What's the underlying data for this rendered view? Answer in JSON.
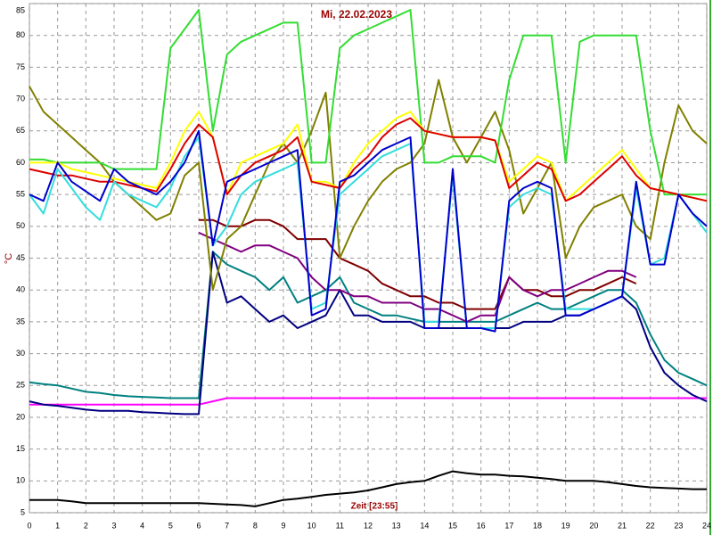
{
  "chart_data": {
    "type": "line",
    "title": "Mi, 22.02.2023",
    "x_label": "Zeit [23:55]",
    "y_label": "°C",
    "xlim": [
      0,
      24
    ],
    "xticks": [
      0,
      1,
      2,
      3,
      4,
      5,
      6,
      7,
      8,
      9,
      10,
      11,
      12,
      13,
      14,
      15,
      16,
      17,
      18,
      19,
      20,
      21,
      22,
      23,
      24
    ],
    "ylim": [
      5,
      85
    ],
    "yticks": [
      5,
      10,
      15,
      20,
      25,
      30,
      35,
      40,
      45,
      50,
      55,
      60,
      65,
      70,
      75,
      80,
      85
    ],
    "grid": true,
    "x": [
      0,
      0.5,
      1,
      1.5,
      2,
      2.5,
      3,
      3.5,
      4,
      4.5,
      5,
      5.5,
      6,
      6.5,
      7,
      7.5,
      8,
      8.5,
      9,
      9.5,
      10,
      10.5,
      11,
      11.5,
      12,
      12.5,
      13,
      13.5,
      14,
      14.5,
      15,
      15.5,
      16,
      16.5,
      17,
      17.5,
      18,
      18.5,
      19,
      19.5,
      20,
      20.5,
      21,
      21.5,
      22,
      22.5,
      23,
      23.5,
      24
    ],
    "series": [
      {
        "color": "#ff00ff",
        "values": [
          22,
          22,
          22,
          22,
          22,
          22,
          22,
          22,
          22,
          22,
          22,
          22,
          22,
          22.5,
          23,
          23,
          23,
          23,
          23,
          23,
          23,
          23,
          23,
          23,
          23,
          23,
          23,
          23,
          23,
          23,
          23,
          23,
          23,
          23,
          23,
          23,
          23,
          23,
          23,
          23,
          23,
          23,
          23,
          23,
          23,
          23,
          23,
          23,
          23
        ]
      },
      {
        "color": "#000000",
        "values": [
          7,
          7,
          7,
          6.8,
          6.5,
          6.5,
          6.5,
          6.5,
          6.5,
          6.5,
          6.5,
          6.5,
          6.5,
          6.4,
          6.3,
          6.2,
          6,
          6.5,
          7,
          7.2,
          7.5,
          7.8,
          8,
          8.2,
          8.5,
          9,
          9.5,
          9.8,
          10,
          10.8,
          11.5,
          11.2,
          11,
          11,
          10.8,
          10.7,
          10.5,
          10.3,
          10,
          10,
          10,
          9.8,
          9.5,
          9.2,
          9,
          8.9,
          8.8,
          8.7,
          8.7
        ]
      },
      {
        "color": "#008080",
        "values": [
          25.5,
          25.2,
          25,
          24.5,
          24,
          23.8,
          23.5,
          23.3,
          23.2,
          23.1,
          23,
          23,
          23,
          46,
          44,
          43,
          42,
          40,
          42,
          38,
          39,
          40,
          42,
          38,
          37,
          36,
          36,
          35.5,
          35,
          35,
          35,
          35,
          35,
          35,
          36,
          37,
          38,
          37,
          37,
          38,
          39,
          40,
          40,
          38,
          33,
          29,
          27,
          26,
          25
        ]
      },
      {
        "color": "#000080",
        "values": [
          22.5,
          22,
          21.8,
          21.5,
          21.2,
          21,
          21,
          21,
          20.8,
          20.7,
          20.6,
          20.5,
          20.5,
          46,
          38,
          39,
          37,
          35,
          36,
          34,
          35,
          36,
          40,
          36,
          36,
          35,
          35,
          35,
          34,
          34,
          34,
          34,
          34,
          34,
          34,
          35,
          35,
          35,
          36,
          36,
          37,
          38,
          39,
          37,
          31,
          27,
          25,
          23.5,
          22.5
        ]
      },
      {
        "color": "#800000",
        "values": [
          null,
          null,
          null,
          null,
          null,
          null,
          null,
          null,
          null,
          null,
          null,
          null,
          51,
          51,
          50,
          50,
          51,
          51,
          50,
          48,
          48,
          48,
          45,
          44,
          43,
          41,
          40,
          39,
          39,
          38,
          38,
          37,
          37,
          37,
          42,
          40,
          40,
          39,
          39,
          40,
          40,
          41,
          42,
          41,
          null,
          null,
          null,
          null,
          null
        ]
      },
      {
        "color": "#800080",
        "values": [
          null,
          null,
          null,
          null,
          null,
          null,
          null,
          null,
          null,
          null,
          null,
          null,
          49,
          48,
          47,
          46,
          47,
          47,
          46,
          45,
          42,
          40,
          40,
          39,
          39,
          38,
          38,
          38,
          37,
          37,
          36,
          35,
          36,
          36,
          42,
          40,
          39,
          40,
          40,
          41,
          42,
          43,
          43,
          42,
          null,
          null,
          null,
          null,
          null
        ]
      },
      {
        "color": "#808000",
        "values": [
          72,
          68,
          66,
          64,
          62,
          60,
          57,
          55,
          53,
          51,
          52,
          58,
          60,
          40,
          48,
          50,
          55,
          60,
          63,
          60,
          65,
          71,
          45,
          50,
          54,
          57,
          59,
          60,
          63,
          73,
          64,
          60,
          64,
          68,
          62,
          52,
          56,
          60,
          45,
          50,
          53,
          54,
          55,
          50,
          48,
          60,
          69,
          65,
          63
        ]
      },
      {
        "color": "#33dd33",
        "values": [
          60.5,
          60.5,
          60,
          60,
          60,
          60,
          59,
          59,
          59,
          59,
          78,
          81,
          84,
          65,
          77,
          79,
          80,
          81,
          82,
          82,
          60,
          60,
          78,
          80,
          81,
          82,
          83,
          84,
          60,
          60,
          61,
          61,
          61,
          60,
          73,
          80,
          80,
          80,
          60,
          79,
          80,
          80,
          80,
          80,
          65,
          55,
          55,
          55,
          55
        ]
      },
      {
        "color": "#ffff00",
        "values": [
          60,
          60,
          60,
          59,
          58.5,
          58,
          57.5,
          57,
          56.5,
          56,
          60,
          65,
          68,
          64,
          55,
          60,
          61,
          62,
          63,
          66,
          57,
          57,
          56,
          60,
          63,
          65,
          67,
          68,
          65,
          64.5,
          64,
          64,
          64,
          63.5,
          57,
          59,
          61,
          60,
          54,
          56,
          58,
          60,
          62,
          59,
          56,
          55.5,
          55,
          54.5,
          54
        ]
      },
      {
        "color": "#dd0000",
        "values": [
          59,
          58.5,
          58,
          58,
          57.5,
          57,
          57,
          56.5,
          56,
          55.5,
          59,
          63,
          66,
          64,
          55,
          58,
          60,
          61,
          62,
          64,
          57,
          56.5,
          56,
          59,
          61,
          64,
          66,
          67,
          65,
          64.5,
          64,
          64,
          64,
          63.5,
          56,
          58,
          60,
          59,
          54,
          55,
          57,
          59,
          61,
          58,
          56,
          55.5,
          55,
          54.5,
          54
        ]
      },
      {
        "color": "#33dddd",
        "values": [
          55,
          52,
          59,
          56,
          53,
          51,
          57,
          55,
          54,
          53,
          56,
          61,
          64,
          47,
          50,
          55,
          57,
          58,
          59,
          60,
          37,
          38,
          55,
          57,
          59,
          61,
          62,
          63,
          35,
          35,
          58,
          34,
          34,
          34,
          53,
          55,
          56,
          55,
          37,
          37,
          37,
          38,
          39,
          56,
          44,
          45,
          55,
          52,
          49
        ]
      },
      {
        "color": "#0000cc",
        "values": [
          55,
          54,
          60,
          57,
          55.5,
          54,
          59,
          57,
          56,
          55,
          57,
          60,
          65,
          47,
          57,
          58,
          59,
          60,
          61,
          62,
          36,
          37,
          57,
          58,
          60,
          62,
          63,
          64,
          34,
          34,
          59,
          34,
          34,
          33.5,
          54,
          56,
          57,
          56,
          36,
          36,
          37,
          38,
          39,
          57,
          44,
          44,
          55,
          52,
          50
        ]
      }
    ]
  }
}
